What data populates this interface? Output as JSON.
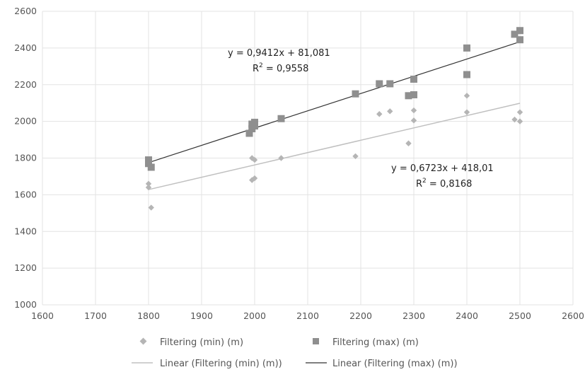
{
  "chart_data": {
    "type": "scatter",
    "title": "",
    "xlabel": "",
    "ylabel": "",
    "xlim": [
      1600,
      2600
    ],
    "ylim": [
      1000,
      2600
    ],
    "x_ticks": [
      "1600",
      "1700",
      "1800",
      "1900",
      "2000",
      "2100",
      "2200",
      "2300",
      "2400",
      "2500",
      "2600"
    ],
    "y_ticks": [
      "1000",
      "1200",
      "1400",
      "1600",
      "1800",
      "2000",
      "2200",
      "2400",
      "2600"
    ],
    "grid": true,
    "legend_position": "bottom",
    "series": [
      {
        "name": "Filtering (min) (m)",
        "marker": "diamond",
        "color": "#b5b5b5",
        "points": [
          [
            1800,
            1660
          ],
          [
            1800,
            1640
          ],
          [
            1805,
            1530
          ],
          [
            1995,
            1680
          ],
          [
            2000,
            1690
          ],
          [
            1995,
            1800
          ],
          [
            2000,
            1790
          ],
          [
            2050,
            1800
          ],
          [
            2190,
            1810
          ],
          [
            2235,
            2040
          ],
          [
            2255,
            2055
          ],
          [
            2290,
            1880
          ],
          [
            2300,
            2005
          ],
          [
            2300,
            2060
          ],
          [
            2400,
            2050
          ],
          [
            2400,
            2140
          ],
          [
            2490,
            2010
          ],
          [
            2500,
            2000
          ],
          [
            2500,
            2050
          ]
        ]
      },
      {
        "name": "Filtering (max) (m)",
        "marker": "square",
        "color": "#8f8f8f",
        "points": [
          [
            1800,
            1790
          ],
          [
            1800,
            1770
          ],
          [
            1805,
            1750
          ],
          [
            1990,
            1935
          ],
          [
            1995,
            1960
          ],
          [
            2000,
            1975
          ],
          [
            1995,
            1985
          ],
          [
            2000,
            1995
          ],
          [
            2050,
            2015
          ],
          [
            2190,
            2150
          ],
          [
            2235,
            2205
          ],
          [
            2255,
            2205
          ],
          [
            2290,
            2140
          ],
          [
            2300,
            2145
          ],
          [
            2300,
            2230
          ],
          [
            2400,
            2255
          ],
          [
            2400,
            2400
          ],
          [
            2490,
            2475
          ],
          [
            2500,
            2495
          ],
          [
            2500,
            2445
          ]
        ]
      }
    ],
    "trendlines": [
      {
        "name": "Linear (Filtering (min) (m))",
        "slope": 0.6723,
        "intercept": 418.01,
        "x_range": [
          1800,
          2500
        ],
        "color": "#c0c0c0",
        "equation_label": "y = 0,6723x + 418,01",
        "r2_prefix": "R",
        "r2_sup": "2",
        "r2_value": " = 0,8168"
      },
      {
        "name": "Linear (Filtering (max) (m))",
        "slope": 0.9412,
        "intercept": 81.081,
        "x_range": [
          1800,
          2500
        ],
        "color": "#333333",
        "equation_label": "y = 0,9412x + 81,081",
        "r2_prefix": "R",
        "r2_sup": "2",
        "r2_value": " = 0,9558"
      }
    ]
  }
}
